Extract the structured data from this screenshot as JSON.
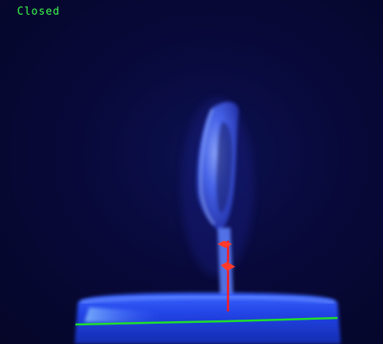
{
  "overlay": {
    "status_text": "Closed",
    "status_color": "#3cff4a"
  },
  "colors": {
    "background": "#070a2e",
    "specimen_glow": "#4a6bff",
    "container_glow": "#2f5cff",
    "baseline_line": "#1fe02a",
    "marker_line": "#ff1a1a",
    "marker_points": "#ff3a2a"
  }
}
